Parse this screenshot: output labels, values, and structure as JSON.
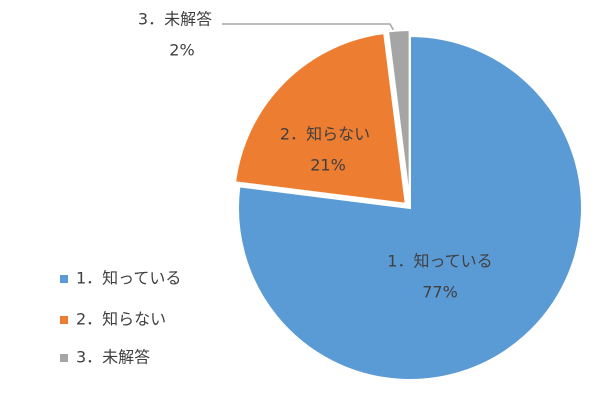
{
  "chart_data": {
    "type": "pie",
    "categories": [
      "1．知っている",
      "2．知らない",
      "3．未解答"
    ],
    "values": [
      77,
      21,
      2
    ],
    "value_labels": [
      "77%",
      "21%",
      "2%"
    ],
    "colors": [
      "#5b9bd5",
      "#ed7d31",
      "#a5a5a5"
    ],
    "legend": "bottom-left"
  }
}
